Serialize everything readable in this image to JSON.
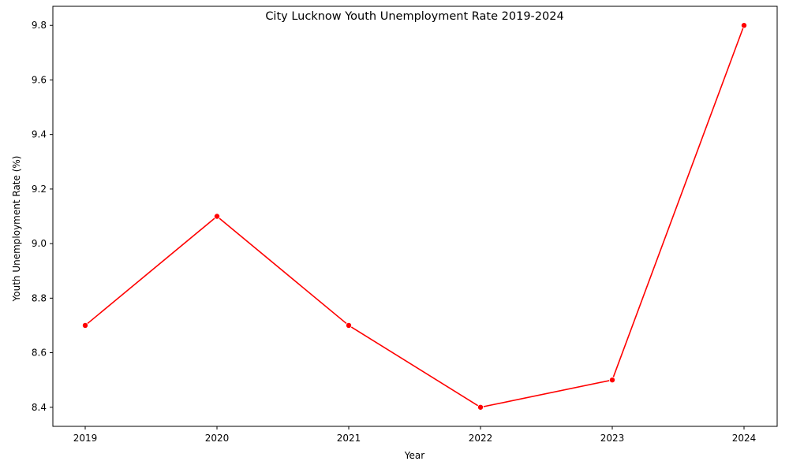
{
  "chart_data": {
    "type": "line",
    "title": "City Lucknow Youth Unemployment Rate 2019-2024",
    "xlabel": "Year",
    "ylabel": "Youth Unemployment Rate (%)",
    "categories": [
      "2019",
      "2020",
      "2021",
      "2022",
      "2023",
      "2024"
    ],
    "series": [
      {
        "values": [
          8.7,
          9.1,
          8.7,
          8.4,
          8.5,
          9.8
        ],
        "color": "#ff0000",
        "marker": "circle"
      }
    ],
    "yticks": [
      "8.4",
      "8.6",
      "8.8",
      "9.0",
      "9.2",
      "9.4",
      "9.6",
      "9.8"
    ],
    "ylim": [
      8.33,
      9.87
    ],
    "grid": false,
    "legend": "none"
  }
}
